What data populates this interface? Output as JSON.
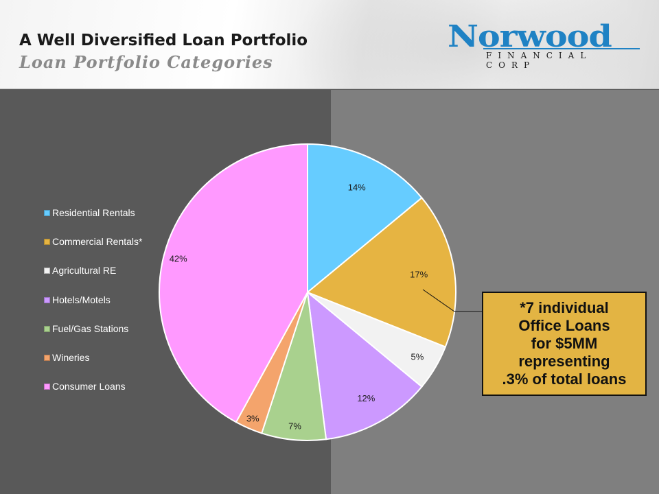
{
  "header": {
    "title": "A Well Diversified Loan Portfolio",
    "subtitle": "Loan Portfolio Categories",
    "logo": {
      "wordmark": "Norwood",
      "tagline": "FINANCIAL CORP",
      "color": "#1f82c4"
    }
  },
  "chart_data": {
    "type": "pie",
    "title": "",
    "legend_position": "left",
    "slices": [
      {
        "label": "Residential Rentals",
        "value": 14,
        "display": "14%",
        "color": "#66ccff"
      },
      {
        "label": "Commercial Rentals*",
        "value": 17,
        "display": "17%",
        "color": "#e6b442"
      },
      {
        "label": "Agricultural RE",
        "value": 5,
        "display": "5%",
        "color": "#f2f2f2"
      },
      {
        "label": "Hotels/Motels",
        "value": 12,
        "display": "12%",
        "color": "#cc99ff"
      },
      {
        "label": "Fuel/Gas Stations",
        "value": 7,
        "display": "7%",
        "color": "#a9d18e"
      },
      {
        "label": "Wineries",
        "value": 3,
        "display": "3%",
        "color": "#f4a46c"
      },
      {
        "label": "Consumer Loans",
        "value": 42,
        "display": "42%",
        "color": "#ff99ff"
      }
    ]
  },
  "callout": {
    "text": "*7 individual\nOffice Loans\nfor $5MM\nrepresenting\n.3% of total loans",
    "color": "#e3b443"
  },
  "colors": {
    "left_panel": "#595959",
    "right_panel": "#7f7f7f"
  }
}
